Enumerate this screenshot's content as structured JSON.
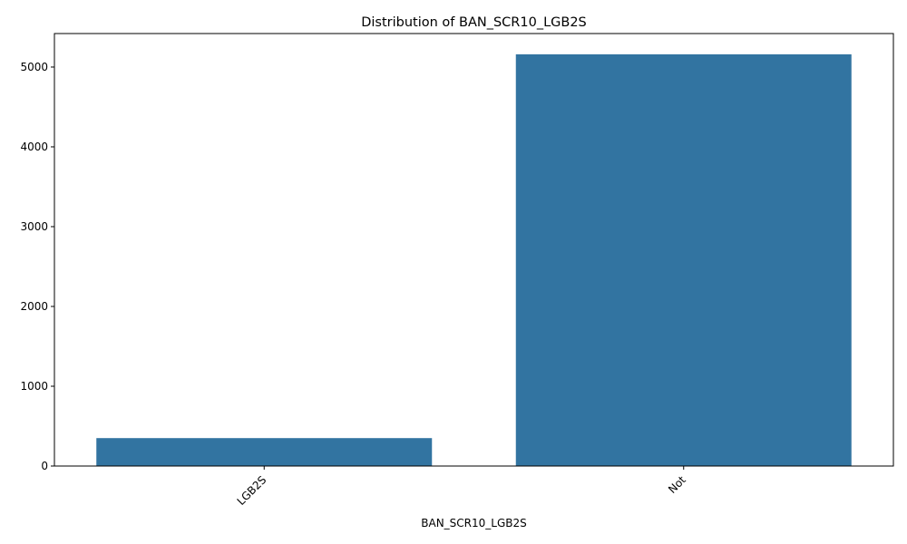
{
  "chart_data": {
    "type": "bar",
    "title": "Distribution of BAN_SCR10_LGB2S",
    "xlabel": "BAN_SCR10_LGB2S",
    "ylabel": "",
    "categories": [
      "LGB2S",
      "Not"
    ],
    "values": [
      350,
      5160
    ],
    "ylim": [
      0,
      5420
    ],
    "yticks": [
      0,
      1000,
      2000,
      3000,
      4000,
      5000
    ],
    "ytick_labels": [
      "0",
      "1000",
      "2000",
      "3000",
      "4000",
      "5000"
    ],
    "xtick_rotation": "45 degrees",
    "bar_color": "#3274a1",
    "grid": false,
    "legend": "none"
  }
}
